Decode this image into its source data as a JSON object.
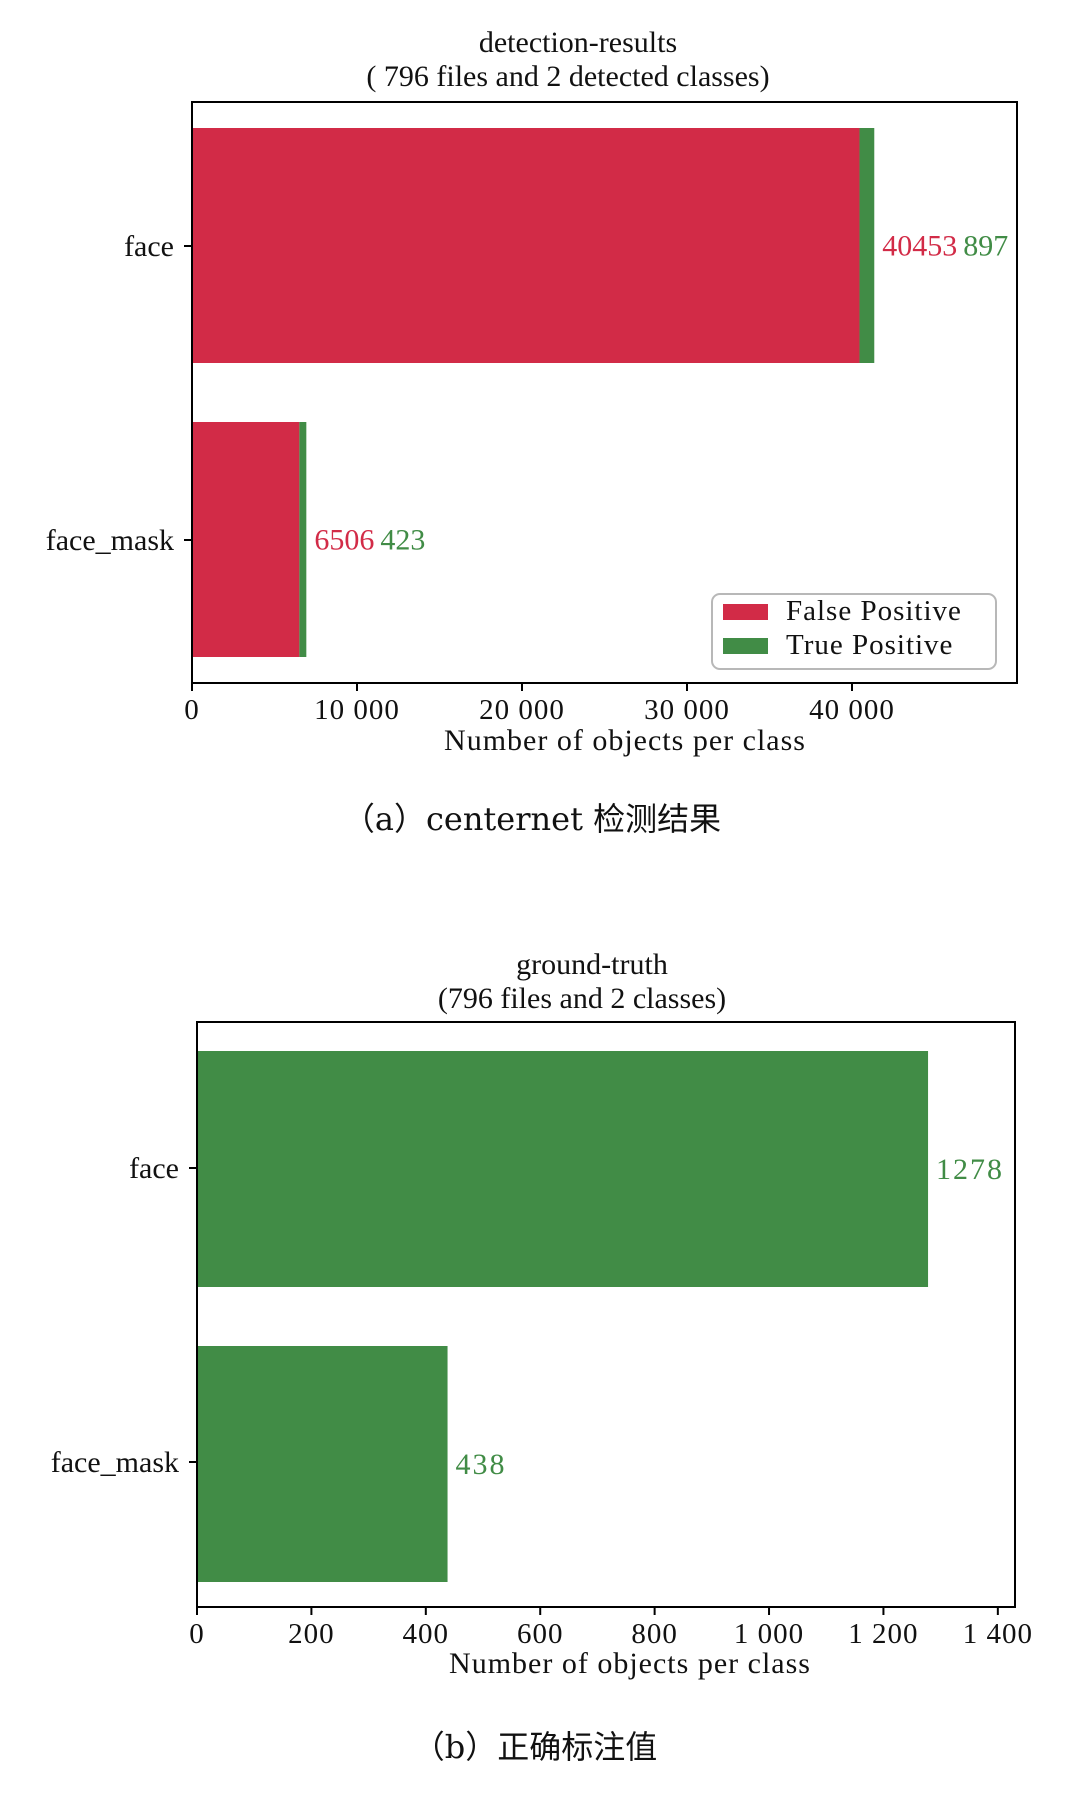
{
  "colors": {
    "false_positive": "#d22b47",
    "true_positive": "#418c46",
    "axis": "#000000",
    "legend_border": "#b8b8b8"
  },
  "chart_data": [
    {
      "type": "bar",
      "orientation": "horizontal",
      "stacked": true,
      "title": "detection-results",
      "subtitle": "( 796 files and 2 detected classes)",
      "xlabel": "Number of objects per class",
      "ylabel": "",
      "categories": [
        "face",
        "face_mask"
      ],
      "series": [
        {
          "name": "False Positive",
          "values": [
            40453,
            6506
          ]
        },
        {
          "name": "True Positive",
          "values": [
            897,
            423
          ]
        }
      ],
      "xlim": [
        0,
        50000
      ],
      "xticks": [
        0,
        10000,
        20000,
        30000,
        40000
      ],
      "xtick_labels": [
        "0",
        "10 000",
        "20 000",
        "30 000",
        "40 000"
      ],
      "data_labels": [
        [
          "40453",
          "897"
        ],
        [
          "6506",
          "423"
        ]
      ],
      "legend": {
        "placement": "lower-right",
        "entries": [
          "False Positive",
          "True Positive"
        ]
      },
      "grid": false,
      "caption": "（a）centernet 检测结果"
    },
    {
      "type": "bar",
      "orientation": "horizontal",
      "stacked": false,
      "title": "ground-truth",
      "subtitle": "(796 files and 2 classes)",
      "xlabel": "Number of objects per class",
      "ylabel": "",
      "categories": [
        "face",
        "face_mask"
      ],
      "series": [
        {
          "values": [
            1278,
            438
          ]
        }
      ],
      "xlim": [
        0,
        1430
      ],
      "xticks": [
        0,
        200,
        400,
        600,
        800,
        1000,
        1200,
        1400
      ],
      "xtick_labels": [
        "0",
        "200",
        "400",
        "600",
        "800",
        "1 000",
        "1 200",
        "1 400"
      ],
      "data_labels": [
        [
          "1278"
        ],
        [
          "438"
        ]
      ],
      "grid": false,
      "caption": "（b）正确标注值"
    }
  ]
}
